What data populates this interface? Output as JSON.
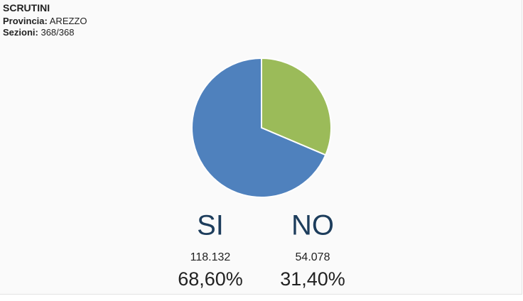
{
  "chart_data": {
    "type": "pie",
    "title": "SCRUTINI",
    "fields": [
      {
        "label": "Provincia:",
        "value": "AREZZO"
      },
      {
        "label": "Sezioni:",
        "value": "368/368"
      }
    ],
    "categories": [
      "SI",
      "NO"
    ],
    "colors": [
      "#4f81bd",
      "#9bbb59"
    ],
    "values": [
      118132,
      54078
    ],
    "value_labels": [
      "118.132",
      "54.078"
    ],
    "percent": [
      68.6,
      31.4
    ],
    "percent_labels": [
      "68,60%",
      "31,40%"
    ]
  }
}
